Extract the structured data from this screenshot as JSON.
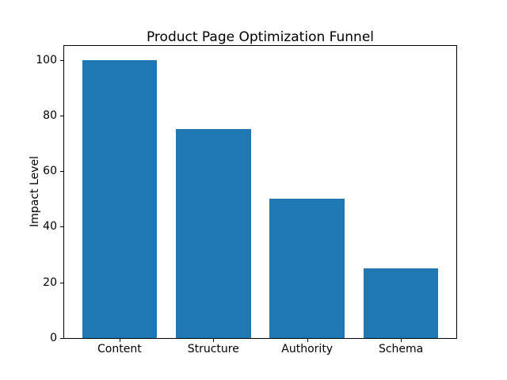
{
  "chart_data": {
    "type": "bar",
    "title": "Product Page Optimization Funnel",
    "categories": [
      "Content",
      "Structure",
      "Authority",
      "Schema"
    ],
    "values": [
      100,
      75,
      50,
      25
    ],
    "xlabel": "",
    "ylabel": "Impact Level",
    "ylim": [
      0,
      105
    ],
    "yticks": [
      0,
      20,
      40,
      60,
      80,
      100
    ],
    "bar_color": "#1f77b4",
    "axis_color": "#000000",
    "background_color": "#ffffff",
    "grid": false,
    "legend": "none"
  }
}
